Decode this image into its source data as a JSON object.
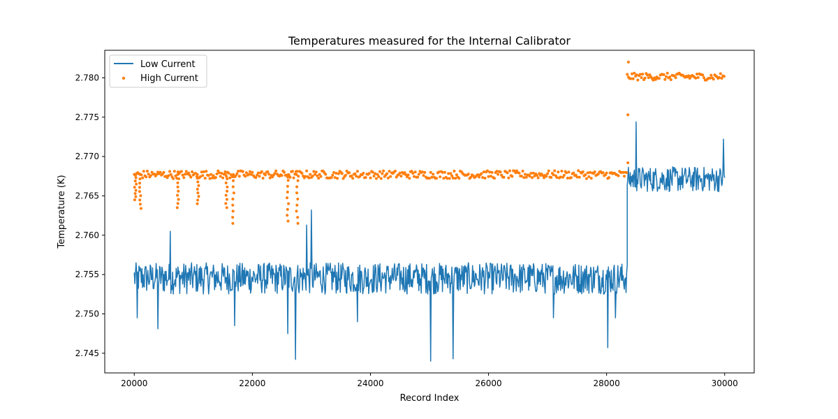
{
  "chart_data": {
    "type": "line",
    "title": "Temperatures measured for the Internal Calibrator",
    "xlabel": "Record Index",
    "ylabel": "Temperature (K)",
    "xlim": [
      19500,
      30500
    ],
    "ylim": [
      2.7425,
      2.7835
    ],
    "x_ticks": [
      20000,
      22000,
      24000,
      26000,
      28000,
      30000
    ],
    "y_ticks": [
      2.745,
      2.75,
      2.755,
      2.76,
      2.765,
      2.77,
      2.775,
      2.78
    ],
    "y_tick_labels": [
      "2.745",
      "2.750",
      "2.755",
      "2.760",
      "2.765",
      "2.770",
      "2.775",
      "2.780"
    ],
    "grid": false,
    "legend_position": "upper-left",
    "series": [
      {
        "name": "Low Current",
        "style": "line",
        "color": "#1f77b4",
        "description": "noisy line",
        "segments": [
          {
            "x_range": [
              20000,
              28350
            ],
            "mean": 2.7547,
            "noise_band": [
              2.7525,
              2.7565
            ]
          },
          {
            "x_range": [
              28350,
              30000
            ],
            "mean": 2.7672,
            "noise_band": [
              2.7655,
              2.7687
            ]
          }
        ],
        "spikes": [
          {
            "x": 20050,
            "y": 2.7495
          },
          {
            "x": 20400,
            "y": 2.7481
          },
          {
            "x": 20610,
            "y": 2.7605
          },
          {
            "x": 21700,
            "y": 2.7485
          },
          {
            "x": 22600,
            "y": 2.7475
          },
          {
            "x": 22730,
            "y": 2.7442
          },
          {
            "x": 22920,
            "y": 2.7613
          },
          {
            "x": 23000,
            "y": 2.7632
          },
          {
            "x": 23780,
            "y": 2.749
          },
          {
            "x": 25020,
            "y": 2.744
          },
          {
            "x": 25400,
            "y": 2.7443
          },
          {
            "x": 27100,
            "y": 2.7495
          },
          {
            "x": 28020,
            "y": 2.7457
          },
          {
            "x": 28150,
            "y": 2.7495
          },
          {
            "x": 28500,
            "y": 2.7744
          },
          {
            "x": 29980,
            "y": 2.7722
          }
        ]
      },
      {
        "name": "High Current",
        "style": "scatter",
        "color": "#ff7f0e",
        "description": "dense scatter",
        "segments": [
          {
            "x_range": [
              20000,
              28350
            ],
            "mean": 2.7677,
            "noise_band": [
              2.7672,
              2.7682
            ]
          },
          {
            "x_range": [
              28350,
              30000
            ],
            "mean": 2.7802,
            "noise_band": [
              2.7797,
              2.7806
            ]
          }
        ],
        "dips": [
          {
            "x": 20020,
            "y": 2.7645
          },
          {
            "x": 20100,
            "y": 2.7634
          },
          {
            "x": 20740,
            "y": 2.7635
          },
          {
            "x": 21080,
            "y": 2.764
          },
          {
            "x": 21560,
            "y": 2.7635
          },
          {
            "x": 21680,
            "y": 2.7615
          },
          {
            "x": 22600,
            "y": 2.7618
          },
          {
            "x": 22760,
            "y": 2.7615
          }
        ],
        "outliers": [
          {
            "x": 28370,
            "y": 2.782
          },
          {
            "x": 28360,
            "y": 2.7753
          },
          {
            "x": 28360,
            "y": 2.7692
          }
        ]
      }
    ]
  }
}
